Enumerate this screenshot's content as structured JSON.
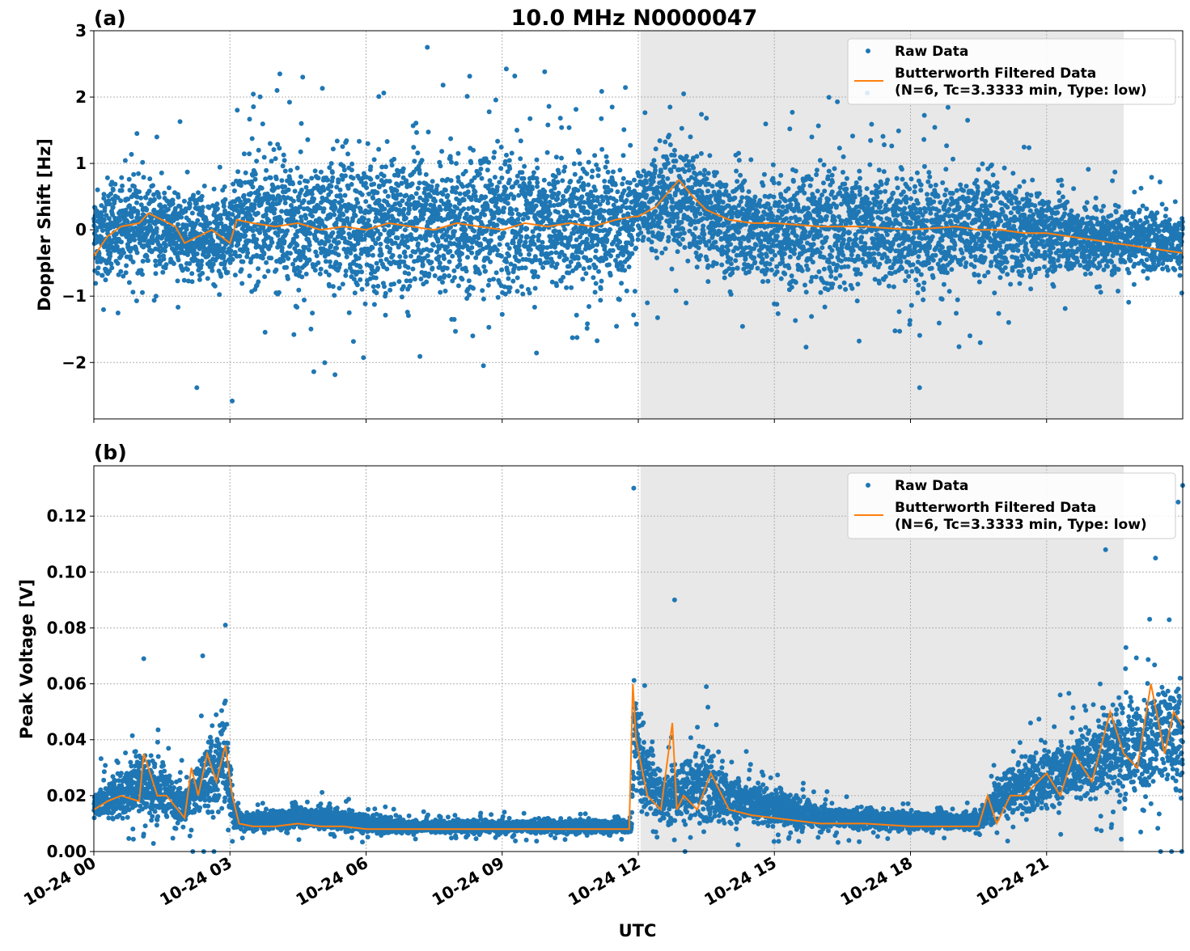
{
  "figure": {
    "title": "10.0 MHz N0000047",
    "xlabel": "UTC",
    "x_tick_labels": [
      "10-24 00",
      "10-24 03",
      "10-24 06",
      "10-24 09",
      "10-24 12",
      "10-24 15",
      "10-24 18",
      "10-24 21"
    ],
    "colors": {
      "raw": "#1f77b4",
      "filtered": "#ff7f0e",
      "night_shade": "#e8e8e8",
      "grid": "#b0b0b0"
    }
  },
  "legend": {
    "raw_label": "Raw Data",
    "filtered_label_line1": "Butterworth Filtered Data",
    "filtered_label_line2": "(N=6, Tc=3.3333 min, Type: low)"
  },
  "chart_data": [
    {
      "panel": "(a)",
      "type": "scatter",
      "ylabel": "Doppler Shift [Hz]",
      "x_unit": "hours UTC (2024-10-24)",
      "xlim": [
        0,
        24
      ],
      "ylim": [
        -2.85,
        3.0
      ],
      "y_ticks": [
        -2,
        -1,
        0,
        1,
        2,
        3
      ],
      "y_tick_labels": [
        "−2",
        "−1",
        "0",
        "1",
        "2",
        "3"
      ],
      "shaded_x_range": [
        12.05,
        22.7
      ],
      "grid": true,
      "legend_position": "top-right",
      "series": [
        {
          "name": "Raw Data",
          "kind": "points-envelope",
          "x": [
            0,
            0.5,
            1,
            1.5,
            2,
            2.5,
            3,
            3.2,
            4,
            5,
            6,
            7,
            8,
            9,
            10,
            11,
            11.9,
            12,
            12.5,
            13,
            13.5,
            14,
            15,
            16,
            17,
            18,
            19,
            20,
            21,
            22,
            23,
            24
          ],
          "y_low": [
            -0.9,
            -0.8,
            -0.8,
            -0.8,
            -0.9,
            -0.9,
            -0.8,
            -0.9,
            -1.1,
            -1.2,
            -1.2,
            -1.2,
            -1.2,
            -1.2,
            -1.2,
            -1.1,
            -1.0,
            -0.5,
            -0.6,
            -0.5,
            -0.7,
            -0.9,
            -1.0,
            -1.1,
            -1.1,
            -1.1,
            -1.0,
            -0.9,
            -0.8,
            -0.8,
            -0.7,
            -0.7
          ],
          "y_high": [
            0.7,
            0.8,
            0.9,
            0.8,
            0.7,
            0.7,
            0.6,
            1.3,
            1.4,
            1.4,
            1.4,
            1.4,
            1.4,
            1.4,
            1.4,
            1.4,
            1.3,
            1.2,
            1.4,
            1.6,
            1.2,
            1.0,
            1.0,
            1.1,
            1.2,
            1.1,
            1.1,
            1.0,
            0.7,
            0.5,
            0.4,
            0.3
          ],
          "outliers": [
            [
              7.35,
              2.75
            ],
            [
              0.95,
              1.45
            ],
            [
              1.9,
              1.63
            ],
            [
              3.05,
              -2.58
            ],
            [
              2.27,
              -2.38
            ],
            [
              12.7,
              1.85
            ],
            [
              18.2,
              -2.38
            ],
            [
              4.1,
              2.35
            ],
            [
              13.0,
              2.05
            ]
          ]
        },
        {
          "name": "Butterworth Filtered Data",
          "kind": "line",
          "x": [
            0,
            0.3,
            0.6,
            1,
            1.2,
            1.5,
            1.8,
            2.0,
            2.3,
            2.6,
            3.0,
            3.15,
            3.5,
            4,
            4.5,
            5,
            5.5,
            6,
            6.5,
            7,
            7.5,
            8,
            8.5,
            9,
            9.5,
            10,
            10.5,
            11,
            11.5,
            11.9,
            12.0,
            12.4,
            12.7,
            12.9,
            13.2,
            13.5,
            14,
            14.5,
            15,
            16,
            17,
            18,
            19,
            19.5,
            20,
            20.5,
            21,
            21.5,
            22,
            22.5,
            23,
            23.5,
            24
          ],
          "y": [
            -0.4,
            -0.1,
            0.05,
            0.1,
            0.25,
            0.15,
            0.05,
            -0.2,
            -0.1,
            0.0,
            -0.2,
            0.15,
            0.1,
            0.05,
            0.1,
            0.0,
            0.05,
            0.0,
            0.1,
            0.05,
            0.0,
            0.1,
            0.05,
            0.0,
            0.1,
            0.05,
            0.1,
            0.05,
            0.15,
            0.2,
            0.2,
            0.35,
            0.6,
            0.75,
            0.5,
            0.3,
            0.15,
            0.1,
            0.1,
            0.05,
            0.05,
            0.0,
            0.05,
            0.0,
            0.0,
            -0.05,
            -0.05,
            -0.1,
            -0.15,
            -0.2,
            -0.25,
            -0.3,
            -0.35
          ]
        }
      ]
    },
    {
      "panel": "(b)",
      "type": "scatter",
      "ylabel": "Peak Voltage [V]",
      "x_unit": "hours UTC (2024-10-24)",
      "xlim": [
        0,
        24
      ],
      "ylim": [
        0.0,
        0.138
      ],
      "y_ticks": [
        0.0,
        0.02,
        0.04,
        0.06,
        0.08,
        0.1,
        0.12
      ],
      "y_tick_labels": [
        "0.00",
        "0.02",
        "0.04",
        "0.06",
        "0.08",
        "0.10",
        "0.12"
      ],
      "shaded_x_range": [
        12.05,
        22.7
      ],
      "grid": true,
      "legend_position": "top-right",
      "series": [
        {
          "name": "Raw Data",
          "kind": "points-envelope",
          "x": [
            0,
            0.5,
            1,
            1.5,
            2,
            2.5,
            2.9,
            3.1,
            3.3,
            4,
            5,
            6,
            7,
            8,
            9,
            10,
            11,
            11.85,
            11.9,
            12.1,
            12.5,
            13,
            13.5,
            14,
            15,
            16,
            17,
            18,
            19,
            19.5,
            20,
            20.5,
            21,
            21.5,
            22,
            22.5,
            23,
            23.5,
            24
          ],
          "y_low": [
            0.009,
            0.009,
            0.01,
            0.009,
            0.008,
            0.009,
            0.009,
            0.007,
            0.007,
            0.007,
            0.007,
            0.006,
            0.006,
            0.006,
            0.006,
            0.006,
            0.006,
            0.006,
            0.01,
            0.01,
            0.008,
            0.008,
            0.008,
            0.008,
            0.007,
            0.007,
            0.007,
            0.007,
            0.007,
            0.007,
            0.01,
            0.012,
            0.013,
            0.014,
            0.015,
            0.015,
            0.015,
            0.015,
            0.015
          ],
          "y_high": [
            0.025,
            0.03,
            0.04,
            0.035,
            0.025,
            0.045,
            0.055,
            0.02,
            0.014,
            0.016,
            0.018,
            0.014,
            0.012,
            0.012,
            0.012,
            0.012,
            0.012,
            0.012,
            0.08,
            0.05,
            0.03,
            0.035,
            0.04,
            0.03,
            0.025,
            0.018,
            0.016,
            0.015,
            0.015,
            0.015,
            0.03,
            0.035,
            0.04,
            0.045,
            0.05,
            0.06,
            0.06,
            0.07,
            0.065
          ],
          "outliers": [
            [
              2.9,
              0.081
            ],
            [
              1.1,
              0.069
            ],
            [
              2.4,
              0.07
            ],
            [
              11.9,
              0.13
            ],
            [
              12.8,
              0.09
            ],
            [
              13.5,
              0.059
            ],
            [
              22.3,
              0.108
            ],
            [
              23.4,
              0.105
            ],
            [
              24.0,
              0.131
            ],
            [
              21.3,
              0.056
            ],
            [
              23.9,
              0.125
            ]
          ]
        },
        {
          "name": "Butterworth Filtered Data",
          "kind": "line",
          "x": [
            0,
            0.3,
            0.6,
            1.0,
            1.1,
            1.4,
            1.6,
            2.0,
            2.15,
            2.3,
            2.5,
            2.7,
            2.9,
            3.05,
            3.2,
            3.5,
            4,
            4.5,
            5,
            5.5,
            6,
            7,
            8,
            9,
            10,
            11,
            11.8,
            11.88,
            11.95,
            12.2,
            12.5,
            12.75,
            12.85,
            13,
            13.3,
            13.6,
            14,
            14.5,
            15,
            16,
            17,
            18,
            19,
            19.5,
            19.7,
            19.9,
            20.2,
            20.5,
            21,
            21.3,
            21.6,
            22,
            22.4,
            22.7,
            23,
            23.3,
            23.6,
            23.8,
            24
          ],
          "y": [
            0.015,
            0.018,
            0.02,
            0.018,
            0.035,
            0.02,
            0.02,
            0.012,
            0.03,
            0.02,
            0.035,
            0.025,
            0.038,
            0.02,
            0.01,
            0.009,
            0.009,
            0.01,
            0.009,
            0.009,
            0.008,
            0.008,
            0.008,
            0.008,
            0.008,
            0.008,
            0.008,
            0.06,
            0.04,
            0.02,
            0.015,
            0.046,
            0.015,
            0.02,
            0.015,
            0.028,
            0.015,
            0.013,
            0.012,
            0.01,
            0.01,
            0.009,
            0.009,
            0.009,
            0.02,
            0.01,
            0.02,
            0.02,
            0.028,
            0.02,
            0.035,
            0.025,
            0.05,
            0.035,
            0.03,
            0.06,
            0.035,
            0.05,
            0.045
          ]
        }
      ]
    }
  ]
}
